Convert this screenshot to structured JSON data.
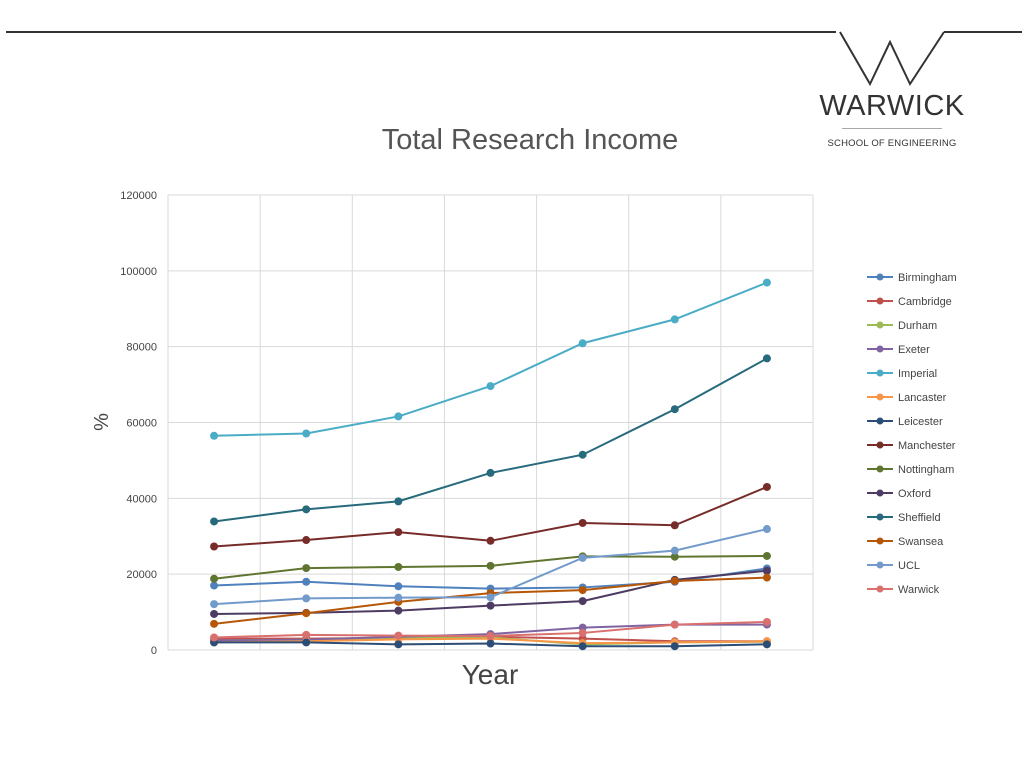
{
  "header": {
    "logo": {
      "name": "WARWICK",
      "subtitle": "SCHOOL OF ENGINEERING"
    }
  },
  "chart_data": {
    "type": "line",
    "title": "Total Research Income",
    "xlabel": "Year",
    "ylabel": "%",
    "ylim": [
      0,
      120000
    ],
    "yticks": [
      0,
      20000,
      40000,
      60000,
      80000,
      100000,
      120000
    ],
    "categories": [
      "",
      "",
      "",
      "",
      "",
      "",
      ""
    ],
    "grid": true,
    "legend_position": "right",
    "series": [
      {
        "name": "Birmingham",
        "color": "#4F81BD",
        "values": [
          17000,
          18000,
          16800,
          16200,
          16500,
          18000,
          21500
        ]
      },
      {
        "name": "Cambridge",
        "color": "#C0504D",
        "values": [
          3000,
          3000,
          3200,
          3500,
          3000,
          2300,
          2300
        ]
      },
      {
        "name": "Durham",
        "color": "#9BBB59",
        "values": [
          2500,
          2700,
          3200,
          3300,
          1500,
          2000,
          2200
        ]
      },
      {
        "name": "Exeter",
        "color": "#8064A2",
        "values": [
          2500,
          2700,
          3500,
          4200,
          5900,
          6700,
          6700
        ]
      },
      {
        "name": "Imperial",
        "color": "#4BACC6",
        "values": [
          56500,
          57100,
          61600,
          69600,
          80900,
          87200,
          96900
        ]
      },
      {
        "name": "Lancaster",
        "color": "#F79646",
        "values": [
          2000,
          2300,
          2800,
          3000,
          1800,
          2000,
          2300
        ]
      },
      {
        "name": "Leicester",
        "color": "#2C4D75",
        "values": [
          2000,
          2000,
          1500,
          1700,
          1000,
          1000,
          1500
        ]
      },
      {
        "name": "Manchester",
        "color": "#772C2A",
        "values": [
          27300,
          29000,
          31100,
          28800,
          33500,
          32900,
          43000
        ]
      },
      {
        "name": "Nottingham",
        "color": "#5F7530",
        "values": [
          18800,
          21600,
          21900,
          22200,
          24700,
          24600,
          24800
        ]
      },
      {
        "name": "Oxford",
        "color": "#4D3B62",
        "values": [
          9500,
          9800,
          10400,
          11700,
          12900,
          18500,
          20900
        ]
      },
      {
        "name": "Sheffield",
        "color": "#276A7C",
        "values": [
          33900,
          37100,
          39200,
          46700,
          51500,
          63500,
          76900
        ]
      },
      {
        "name": "Swansea",
        "color": "#B65708",
        "values": [
          6900,
          9700,
          12700,
          15000,
          15800,
          18200,
          19100
        ]
      },
      {
        "name": "UCL",
        "color": "#729ACA",
        "values": [
          12100,
          13600,
          13800,
          13900,
          24300,
          26200,
          31900
        ]
      },
      {
        "name": "Warwick",
        "color": "#D9706E",
        "values": [
          3300,
          4000,
          3800,
          3700,
          4500,
          6700,
          7400
        ]
      }
    ]
  }
}
